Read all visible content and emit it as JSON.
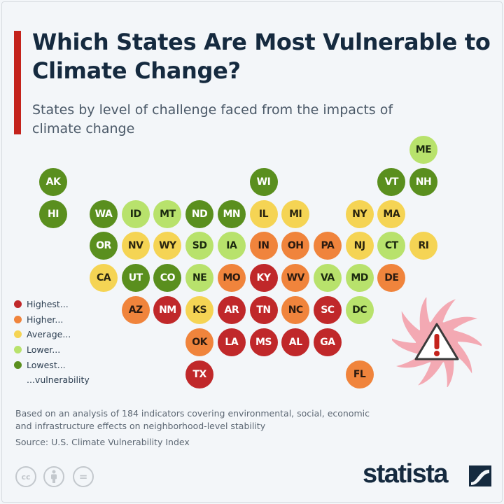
{
  "header": {
    "title": "Which States Are Most Vulnerable to Climate Change?",
    "subtitle": "States by level of challenge faced from the impacts of climate change"
  },
  "levels": {
    "1": {
      "label": "Highest...",
      "color": "#c0282a",
      "text_color": "#ffffff"
    },
    "2": {
      "label": "Higher...",
      "color": "#f0843c",
      "text_color": "#2a1a10"
    },
    "3": {
      "label": "Average...",
      "color": "#f5d454",
      "text_color": "#2a2410"
    },
    "4": {
      "label": "Lower...",
      "color": "#b8e26c",
      "text_color": "#1c2a10"
    },
    "5": {
      "label": "Lowest...",
      "color": "#5a8f1e",
      "text_color": "#ffffff"
    }
  },
  "legend": {
    "items": [
      "Highest...",
      "Higher...",
      "Average...",
      "Lower...",
      "Lowest..."
    ],
    "suffix": "...vulnerability"
  },
  "chart_data": {
    "type": "tile-map",
    "scale": "1 = highest vulnerability, 5 = lowest vulnerability",
    "states": [
      {
        "code": "ME",
        "level": 4,
        "row": 0,
        "col": 11
      },
      {
        "code": "AK",
        "level": 5,
        "row": 1,
        "col": 0
      },
      {
        "code": "WI",
        "level": 5,
        "row": 1,
        "col": 6
      },
      {
        "code": "VT",
        "level": 5,
        "row": 1,
        "col": 10
      },
      {
        "code": "NH",
        "level": 5,
        "row": 1,
        "col": 11
      },
      {
        "code": "HI",
        "level": 5,
        "row": 2,
        "col": 0
      },
      {
        "code": "WA",
        "level": 5,
        "row": 2,
        "col": 1
      },
      {
        "code": "ID",
        "level": 4,
        "row": 2,
        "col": 2
      },
      {
        "code": "MT",
        "level": 4,
        "row": 2,
        "col": 3
      },
      {
        "code": "ND",
        "level": 5,
        "row": 2,
        "col": 4
      },
      {
        "code": "MN",
        "level": 5,
        "row": 2,
        "col": 5
      },
      {
        "code": "IL",
        "level": 3,
        "row": 2,
        "col": 6
      },
      {
        "code": "MI",
        "level": 3,
        "row": 2,
        "col": 7
      },
      {
        "code": "NY",
        "level": 3,
        "row": 2,
        "col": 9
      },
      {
        "code": "MA",
        "level": 3,
        "row": 2,
        "col": 10
      },
      {
        "code": "OR",
        "level": 5,
        "row": 3,
        "col": 1
      },
      {
        "code": "NV",
        "level": 3,
        "row": 3,
        "col": 2
      },
      {
        "code": "WY",
        "level": 3,
        "row": 3,
        "col": 3
      },
      {
        "code": "SD",
        "level": 4,
        "row": 3,
        "col": 4
      },
      {
        "code": "IA",
        "level": 4,
        "row": 3,
        "col": 5
      },
      {
        "code": "IN",
        "level": 2,
        "row": 3,
        "col": 6
      },
      {
        "code": "OH",
        "level": 2,
        "row": 3,
        "col": 7
      },
      {
        "code": "PA",
        "level": 2,
        "row": 3,
        "col": 8
      },
      {
        "code": "NJ",
        "level": 3,
        "row": 3,
        "col": 9
      },
      {
        "code": "CT",
        "level": 4,
        "row": 3,
        "col": 10
      },
      {
        "code": "RI",
        "level": 3,
        "row": 3,
        "col": 11
      },
      {
        "code": "CA",
        "level": 3,
        "row": 4,
        "col": 1
      },
      {
        "code": "UT",
        "level": 5,
        "row": 4,
        "col": 2
      },
      {
        "code": "CO",
        "level": 5,
        "row": 4,
        "col": 3
      },
      {
        "code": "NE",
        "level": 4,
        "row": 4,
        "col": 4
      },
      {
        "code": "MO",
        "level": 2,
        "row": 4,
        "col": 5
      },
      {
        "code": "KY",
        "level": 1,
        "row": 4,
        "col": 6
      },
      {
        "code": "WV",
        "level": 2,
        "row": 4,
        "col": 7
      },
      {
        "code": "VA",
        "level": 4,
        "row": 4,
        "col": 8
      },
      {
        "code": "MD",
        "level": 4,
        "row": 4,
        "col": 9
      },
      {
        "code": "DE",
        "level": 2,
        "row": 4,
        "col": 10
      },
      {
        "code": "AZ",
        "level": 2,
        "row": 5,
        "col": 2
      },
      {
        "code": "NM",
        "level": 1,
        "row": 5,
        "col": 3
      },
      {
        "code": "KS",
        "level": 3,
        "row": 5,
        "col": 4
      },
      {
        "code": "AR",
        "level": 1,
        "row": 5,
        "col": 5
      },
      {
        "code": "TN",
        "level": 1,
        "row": 5,
        "col": 6
      },
      {
        "code": "NC",
        "level": 2,
        "row": 5,
        "col": 7
      },
      {
        "code": "SC",
        "level": 1,
        "row": 5,
        "col": 8
      },
      {
        "code": "DC",
        "level": 4,
        "row": 5,
        "col": 9
      },
      {
        "code": "OK",
        "level": 2,
        "row": 6,
        "col": 4
      },
      {
        "code": "LA",
        "level": 1,
        "row": 6,
        "col": 5
      },
      {
        "code": "MS",
        "level": 1,
        "row": 6,
        "col": 6
      },
      {
        "code": "AL",
        "level": 1,
        "row": 6,
        "col": 7
      },
      {
        "code": "GA",
        "level": 1,
        "row": 6,
        "col": 8
      },
      {
        "code": "TX",
        "level": 1,
        "row": 7,
        "col": 4
      },
      {
        "code": "FL",
        "level": 2,
        "row": 7,
        "col": 9
      }
    ]
  },
  "footer": {
    "note": "Based on an analysis of 184 indicators covering environmental, social, economic and infrastructure effects on neighborhood-level stability",
    "source": "Source: U.S. Climate Vulnerability Index",
    "license_icons": [
      "cc-icon",
      "attribution-icon",
      "no-derivatives-icon"
    ],
    "license_labels": [
      "cc",
      "",
      "="
    ],
    "brand": "statista"
  },
  "colors": {
    "accent": "#c4231c",
    "title": "#152a3f",
    "storm": "#f3a9b3"
  }
}
